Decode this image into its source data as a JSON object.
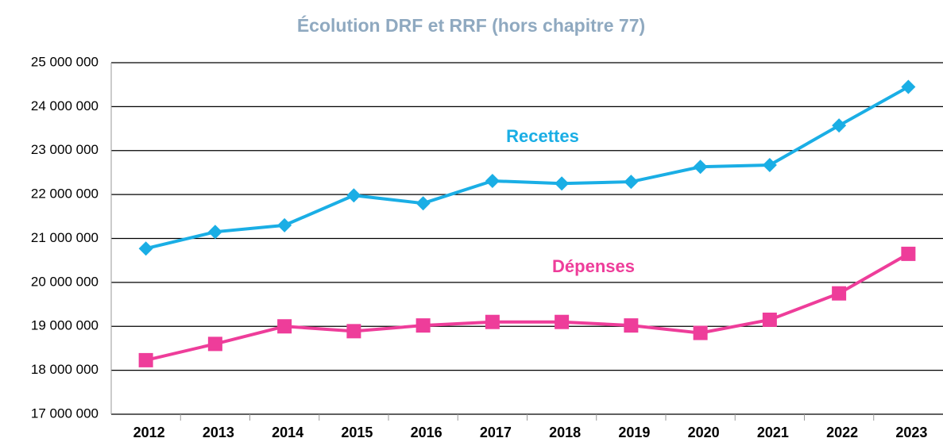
{
  "chart_data": {
    "type": "line",
    "title": "Écolution DRF et RRF (hors chapitre 77)",
    "categories": [
      "2012",
      "2013",
      "2014",
      "2015",
      "2016",
      "2017",
      "2018",
      "2019",
      "2020",
      "2021",
      "2022",
      "2023"
    ],
    "series": [
      {
        "name": "Recettes",
        "color": "#1aaee5",
        "values": [
          20770000,
          21150000,
          21300000,
          21980000,
          21800000,
          22310000,
          22250000,
          22290000,
          22630000,
          22670000,
          23570000,
          24450000
        ]
      },
      {
        "name": "Dépenses",
        "color": "#ee3d9a",
        "values": [
          18230000,
          18600000,
          19000000,
          18890000,
          19020000,
          19100000,
          19100000,
          19020000,
          18850000,
          19150000,
          19750000,
          20650000
        ]
      }
    ],
    "ylim": [
      17000000,
      25000000
    ],
    "yticks": [
      {
        "value": 17000000,
        "label": "17 000 000"
      },
      {
        "value": 18000000,
        "label": "18 000 000"
      },
      {
        "value": 19000000,
        "label": "19 000 000"
      },
      {
        "value": 20000000,
        "label": "20 000 000"
      },
      {
        "value": 21000000,
        "label": "21 000 000"
      },
      {
        "value": 22000000,
        "label": "22 000 000"
      },
      {
        "value": 23000000,
        "label": "23 000 000"
      },
      {
        "value": 24000000,
        "label": "24 000 000"
      },
      {
        "value": 25000000,
        "label": "25 000 000"
      }
    ],
    "grid": true
  }
}
